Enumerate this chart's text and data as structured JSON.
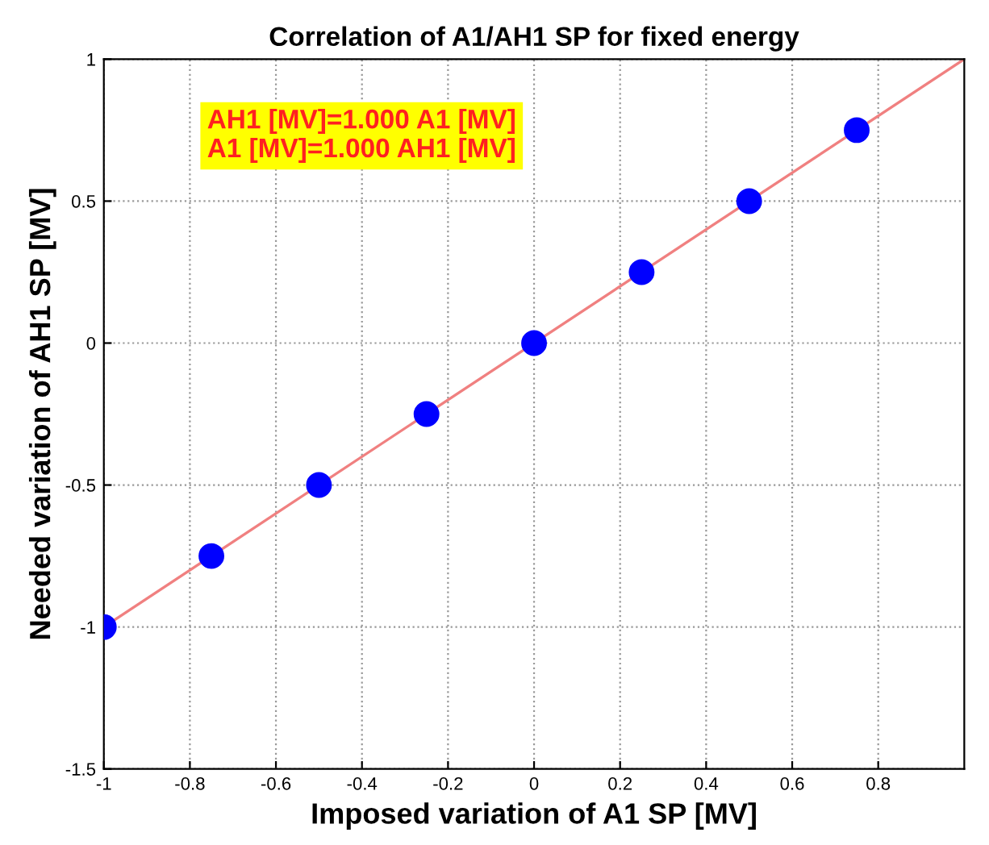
{
  "chart_data": {
    "type": "scatter",
    "title": "Correlation of A1/AH1 SP for fixed energy",
    "xlabel": "Imposed variation of A1 SP [MV]",
    "ylabel": "Needed variation of AH1 SP [MV]",
    "annotations": [
      "AH1 [MV]=1.000 A1 [MV]\nA1 [MV]=1.000 AH1 [MV]"
    ],
    "series": [
      {
        "type": "line",
        "x": [
          -1,
          1
        ],
        "values": [
          -1,
          1
        ],
        "color": "#f08080",
        "marker": "none",
        "line_style": "solid"
      },
      {
        "x": [
          -1,
          -0.75,
          -0.5,
          -0.25,
          0,
          0.25,
          0.5,
          0.75
        ],
        "values": [
          -1,
          -0.75,
          -0.5,
          -0.25,
          0,
          0.25,
          0.5,
          0.75
        ],
        "color": "#0000ff",
        "marker": "circle"
      }
    ],
    "xlim": [
      -1,
      1
    ],
    "xticks": [
      -1,
      -0.8,
      -0.6,
      -0.4,
      -0.2,
      0,
      0.2,
      0.4,
      0.6,
      0.8
    ],
    "ylim": [
      -1.5,
      1
    ],
    "yticks": [
      -1.5,
      -1,
      -0.5,
      0,
      0.5,
      1
    ],
    "grid": true,
    "legend": false
  }
}
